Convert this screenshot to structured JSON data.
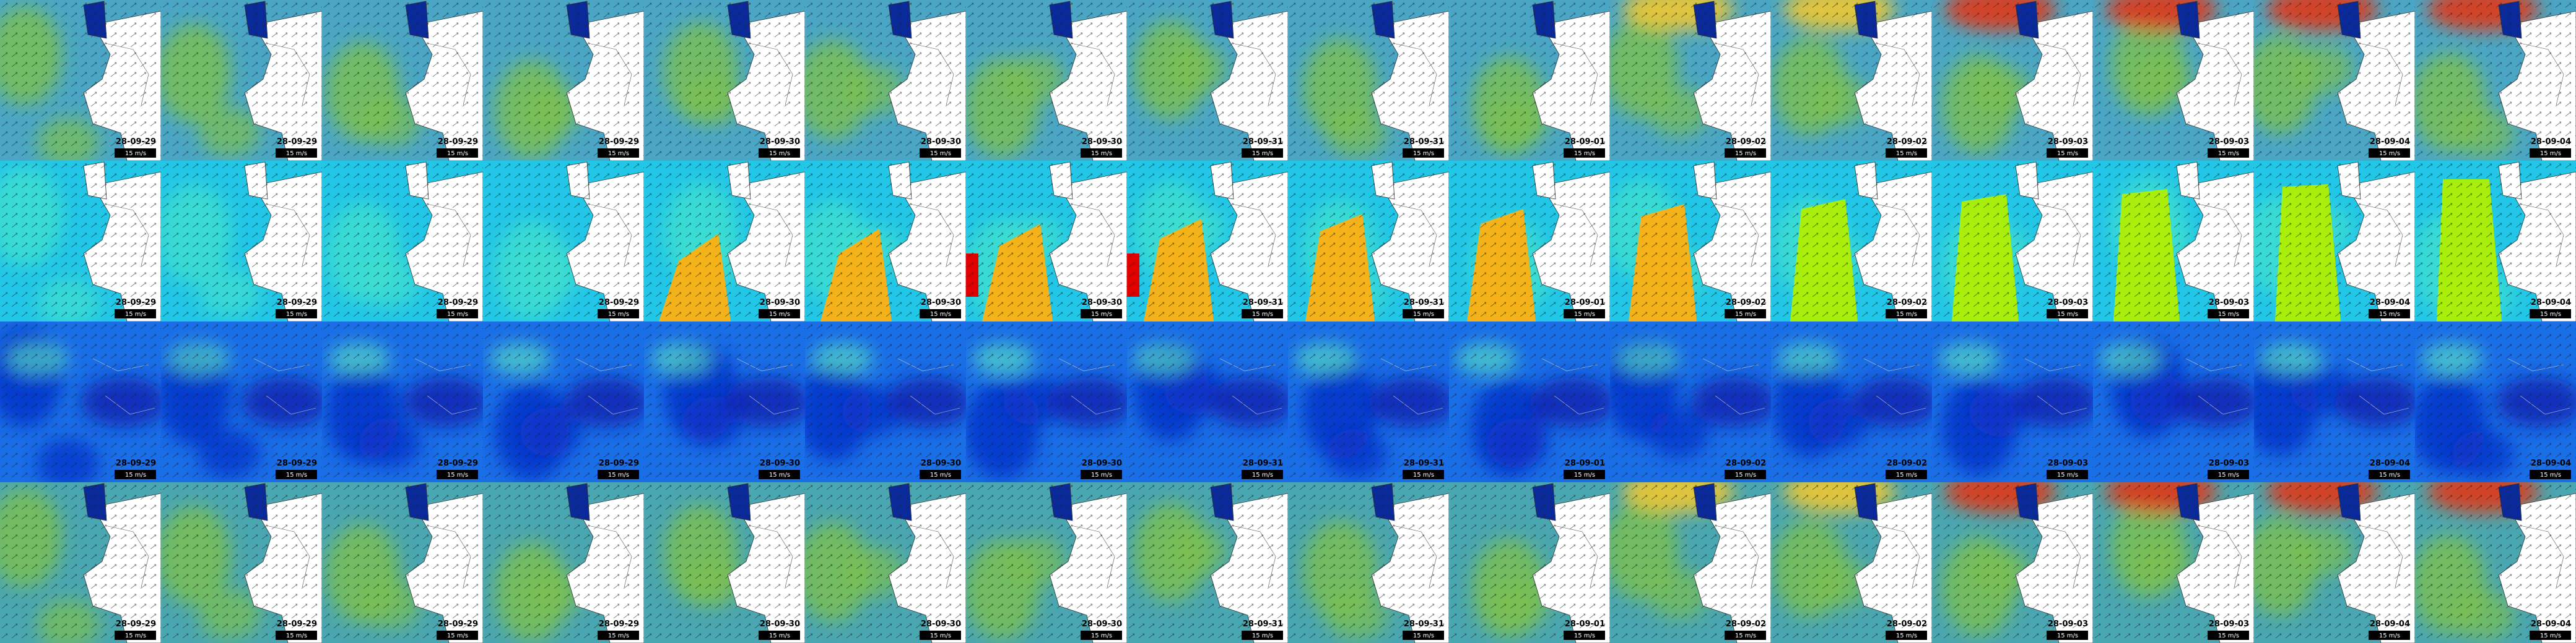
{
  "dates": [
    "28-09-29",
    "28-09-29",
    "28-09-29",
    "28-09-29",
    "28-09-30",
    "28-09-30",
    "28-09-30",
    "28-09-31",
    "28-09-31",
    "28-09-01",
    "28-09-02",
    "28-09-02",
    "28-09-03",
    "28-09-03",
    "28-09-04",
    "28-09-04"
  ],
  "scale_label": "15 m/s"
}
